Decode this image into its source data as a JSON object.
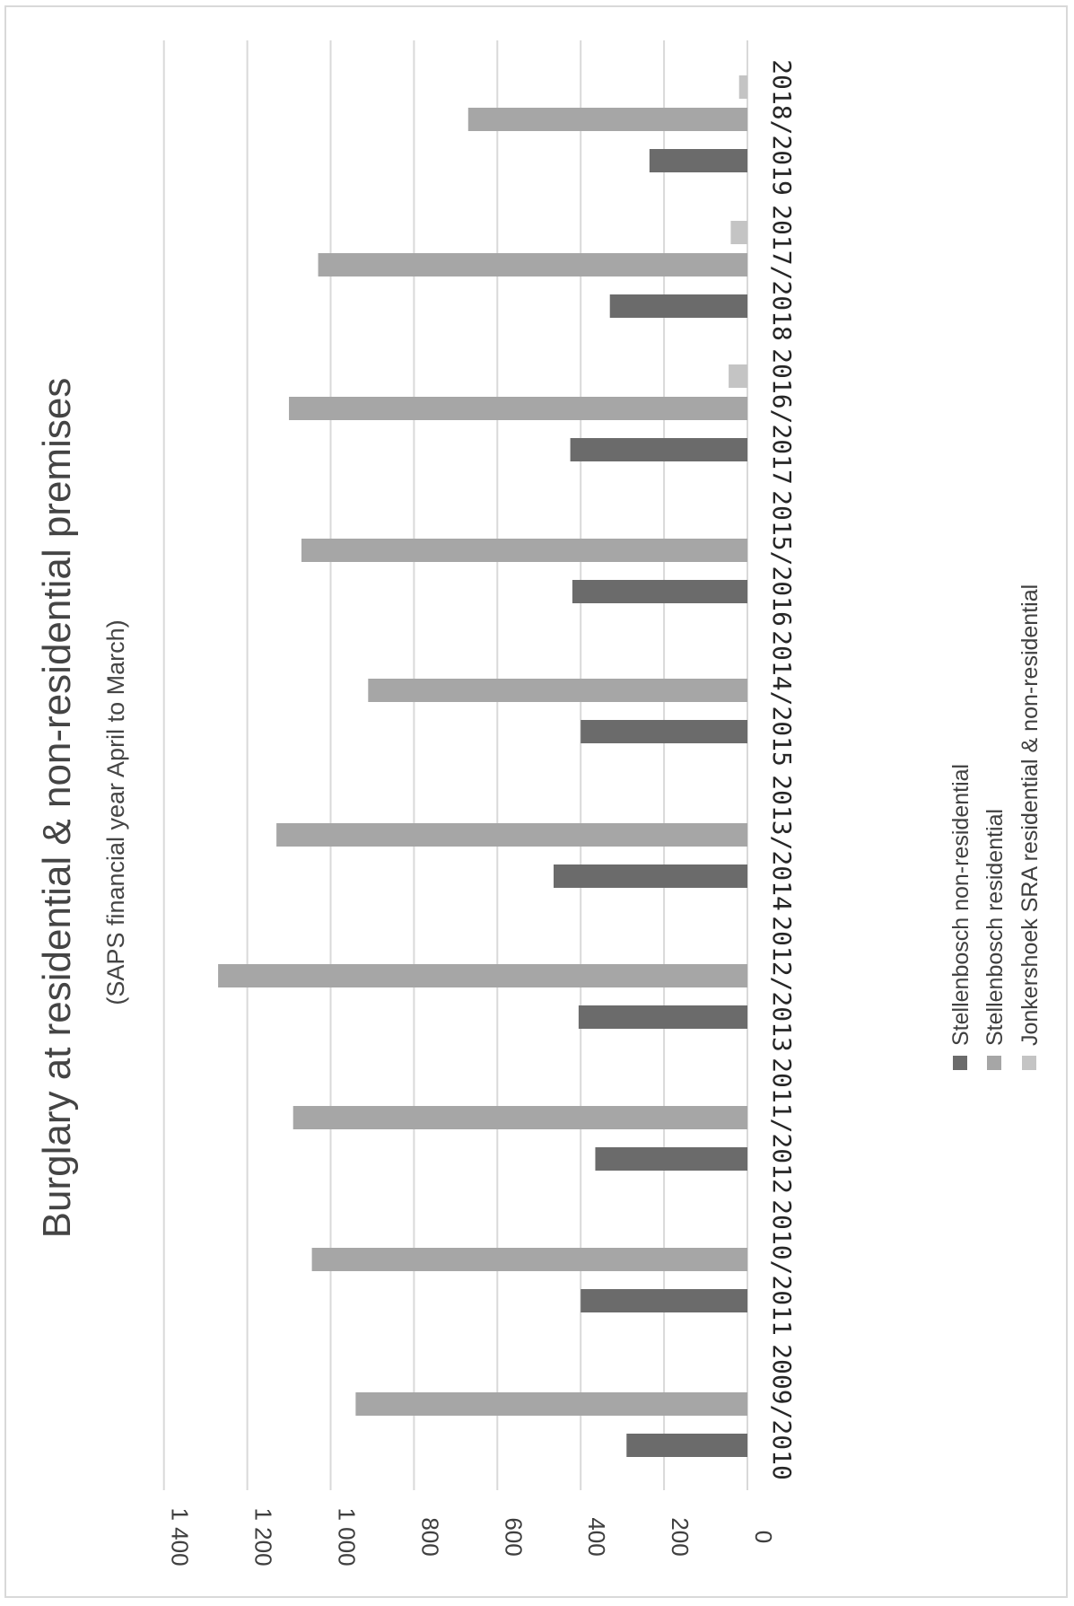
{
  "chart_data": {
    "type": "bar",
    "orientation": "rotated-90",
    "title": "Burglary at residential & non-residential premises",
    "subtitle": "(SAPS financial year April to March)",
    "categories": [
      "2009/2010",
      "2010/2011",
      "2011/2012",
      "2012/2013",
      "2013/2014",
      "2014/2015",
      "2015/2016",
      "2016/2017",
      "2017/2018",
      "2018/2019"
    ],
    "series": [
      {
        "name": "Stellenbosch non-residential",
        "color": "#6b6b6b",
        "values": [
          290,
          400,
          365,
          405,
          465,
          400,
          420,
          425,
          330,
          235
        ]
      },
      {
        "name": "Stellenbosch residential",
        "color": "#a6a6a6",
        "values": [
          940,
          1045,
          1090,
          1270,
          1130,
          910,
          1070,
          1100,
          1030,
          670
        ]
      },
      {
        "name": "Jonkershoek SRA residential & non-residential",
        "color": "#c4c4c4",
        "values": [
          0,
          0,
          0,
          0,
          0,
          0,
          0,
          45,
          40,
          20
        ]
      }
    ],
    "yticks": [
      "0",
      "200",
      "400",
      "600",
      "800",
      "1 000",
      "1 200",
      "1 400"
    ],
    "ylim": [
      0,
      1400
    ],
    "grid": true,
    "legend_position": "bottom-right"
  }
}
